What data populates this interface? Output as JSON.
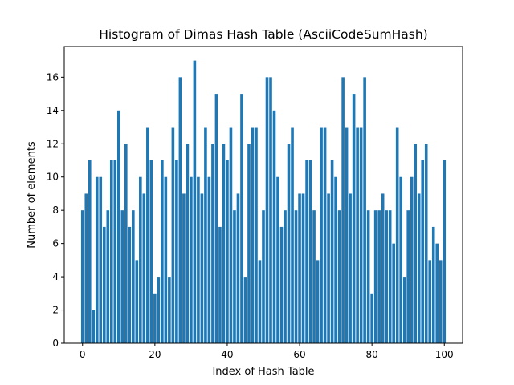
{
  "chart_data": {
    "type": "bar",
    "title": "Histogram of Dimas Hash Table (AsciiCodeSumHash)",
    "xlabel": "Index of Hash Table",
    "ylabel": "Number of elements",
    "xlim": [
      -5.05,
      105.05
    ],
    "ylim": [
      0,
      17.85
    ],
    "xticks": [
      0,
      20,
      40,
      60,
      80,
      100
    ],
    "yticks": [
      0,
      2,
      4,
      6,
      8,
      10,
      12,
      14,
      16
    ],
    "bar_color": "#1f77b4",
    "grid": false,
    "x": [
      0,
      1,
      2,
      3,
      4,
      5,
      6,
      7,
      8,
      9,
      10,
      11,
      12,
      13,
      14,
      15,
      16,
      17,
      18,
      19,
      20,
      21,
      22,
      23,
      24,
      25,
      26,
      27,
      28,
      29,
      30,
      31,
      32,
      33,
      34,
      35,
      36,
      37,
      38,
      39,
      40,
      41,
      42,
      43,
      44,
      45,
      46,
      47,
      48,
      49,
      50,
      51,
      52,
      53,
      54,
      55,
      56,
      57,
      58,
      59,
      60,
      61,
      62,
      63,
      64,
      65,
      66,
      67,
      68,
      69,
      70,
      71,
      72,
      73,
      74,
      75,
      76,
      77,
      78,
      79,
      80,
      81,
      82,
      83,
      84,
      85,
      86,
      87,
      88,
      89,
      90,
      91,
      92,
      93,
      94,
      95,
      96,
      97,
      98,
      99,
      100
    ],
    "values": [
      8,
      9,
      11,
      2,
      10,
      10,
      7,
      8,
      11,
      11,
      14,
      8,
      12,
      7,
      8,
      5,
      10,
      9,
      13,
      11,
      3,
      4,
      11,
      10,
      4,
      13,
      11,
      16,
      9,
      12,
      10,
      17,
      10,
      9,
      13,
      10,
      12,
      15,
      7,
      12,
      11,
      13,
      8,
      9,
      15,
      4,
      12,
      13,
      13,
      5,
      8,
      16,
      16,
      14,
      10,
      7,
      8,
      12,
      13,
      8,
      9,
      9,
      11,
      11,
      8,
      5,
      13,
      13,
      9,
      11,
      10,
      8,
      16,
      13,
      9,
      15,
      13,
      13,
      16,
      8,
      3,
      8,
      8,
      9,
      8,
      8,
      6,
      13,
      10,
      4,
      8,
      10,
      12,
      9,
      11,
      12,
      5,
      7,
      6,
      5,
      11
    ]
  }
}
